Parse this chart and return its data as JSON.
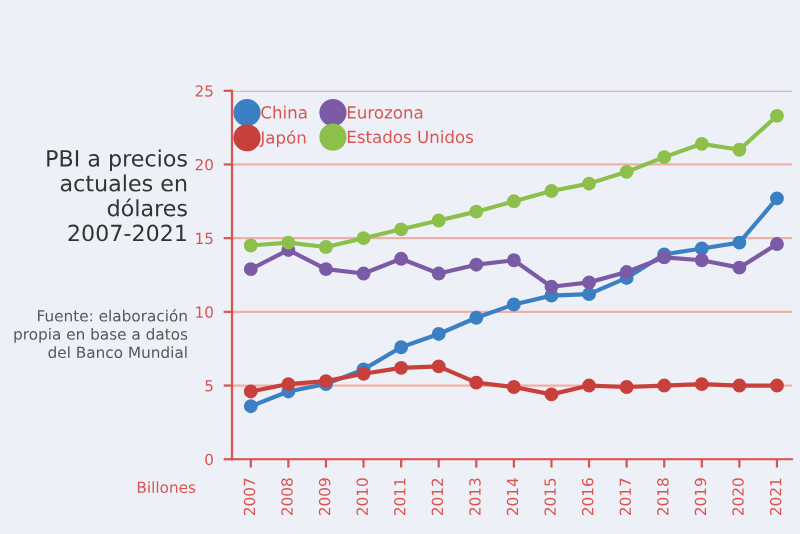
{
  "chart_data": {
    "type": "line",
    "title": "PBI a precios actuales en dólares 2007-2021",
    "ylabel": "Billones",
    "annotations": [
      "Fuente: elaboración propia en base a datos del Banco Mundial"
    ],
    "categories": [
      "2007",
      "2008",
      "2009",
      "2010",
      "2011",
      "2012",
      "2013",
      "2014",
      "2015",
      "2016",
      "2017",
      "2018",
      "2019",
      "2020",
      "2021"
    ],
    "series": [
      {
        "name": "China",
        "color": "#3b7fc4",
        "values": [
          3.6,
          4.6,
          5.1,
          6.1,
          7.6,
          8.5,
          9.6,
          10.5,
          11.1,
          11.2,
          12.3,
          13.9,
          14.3,
          14.7,
          17.7
        ]
      },
      {
        "name": "Japón",
        "color": "#c8403c",
        "values": [
          4.6,
          5.1,
          5.3,
          5.8,
          6.2,
          6.3,
          5.2,
          4.9,
          4.4,
          5.0,
          4.9,
          5.0,
          5.1,
          5.0,
          5.0
        ]
      },
      {
        "name": "Eurozona",
        "color": "#7b5aa6",
        "values": [
          12.9,
          14.2,
          12.9,
          12.6,
          13.6,
          12.6,
          13.2,
          13.5,
          11.7,
          12.0,
          12.7,
          13.7,
          13.5,
          13.0,
          14.6
        ]
      },
      {
        "name": "Estados Unidos",
        "color": "#8dc04b",
        "values": [
          14.5,
          14.7,
          14.4,
          15.0,
          15.6,
          16.2,
          16.8,
          17.5,
          18.2,
          18.7,
          19.5,
          20.5,
          21.4,
          21.0,
          23.3
        ]
      }
    ],
    "ylim": [
      0,
      25
    ],
    "yticks": [
      0,
      5,
      10,
      15,
      20,
      25
    ],
    "grid": "y",
    "legend": "top left",
    "marker": "circle",
    "line_style": "solid"
  }
}
